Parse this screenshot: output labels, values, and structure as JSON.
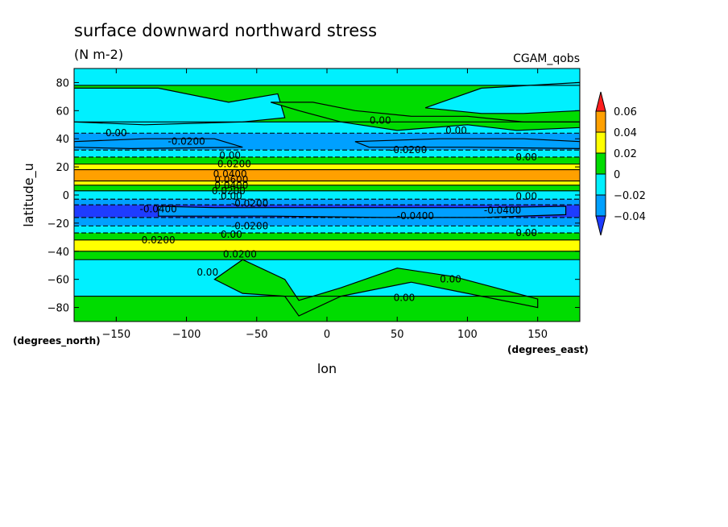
{
  "chart_data": {
    "type": "heatmap",
    "title": "surface downward northward stress",
    "units": "(N m-2)",
    "dataset": "CGAM_qobs",
    "xlabel": "lon",
    "ylabel": "latitude_u",
    "x_units": "(degrees_east)",
    "y_units": "(degrees_north)",
    "xlim": [
      -180,
      180
    ],
    "ylim": [
      -90,
      90
    ],
    "x_ticks": [
      -150,
      -100,
      -50,
      0,
      50,
      100,
      150
    ],
    "y_ticks": [
      80,
      60,
      40,
      20,
      0,
      -20,
      -40,
      -60,
      -80
    ],
    "colorbar": {
      "levels": [
        0.06,
        0.04,
        0.02,
        0,
        -0.02,
        -0.04
      ],
      "level_labels": [
        "0.06",
        "0.04",
        "0.02",
        "0",
        "−0.02",
        "−0.04"
      ],
      "bins": [
        {
          "name": "above 0.06",
          "color": "#ff1e1e"
        },
        {
          "name": "0.04 to 0.06",
          "color": "#ffa000"
        },
        {
          "name": "0.02 to 0.04",
          "color": "#ffff00"
        },
        {
          "name": "0 to 0.02",
          "color": "#00dc00"
        },
        {
          "name": "-0.02 to 0",
          "color": "#00f0ff"
        },
        {
          "name": "-0.04 to -0.02",
          "color": "#00a0ff"
        },
        {
          "name": "below -0.04",
          "color": "#1e3cff"
        }
      ]
    },
    "bands": [
      {
        "lat": [
          78,
          90
        ],
        "bin": "-0.02 to 0"
      },
      {
        "lat": [
          52,
          78
        ],
        "bin": "0 to 0.02"
      },
      {
        "lat": [
          44,
          52
        ],
        "bin": "-0.02 to 0"
      },
      {
        "lat": [
          32,
          44
        ],
        "bin": "-0.04 to -0.02"
      },
      {
        "lat": [
          27,
          32
        ],
        "bin": "-0.02 to 0"
      },
      {
        "lat": [
          22,
          27
        ],
        "bin": "0 to 0.02"
      },
      {
        "lat": [
          18,
          22
        ],
        "bin": "0.02 to 0.04"
      },
      {
        "lat": [
          10,
          18
        ],
        "bin": "0.04 to 0.06"
      },
      {
        "lat": [
          7,
          10
        ],
        "bin": "0.02 to 0.04"
      },
      {
        "lat": [
          3,
          7
        ],
        "bin": "0 to 0.02"
      },
      {
        "lat": [
          -3,
          3
        ],
        "bin": "-0.02 to 0"
      },
      {
        "lat": [
          -7,
          -3
        ],
        "bin": "-0.04 to -0.02"
      },
      {
        "lat": [
          -16,
          -7
        ],
        "bin": "below -0.04"
      },
      {
        "lat": [
          -22,
          -16
        ],
        "bin": "-0.04 to -0.02"
      },
      {
        "lat": [
          -27,
          -22
        ],
        "bin": "-0.02 to 0"
      },
      {
        "lat": [
          -32,
          -27
        ],
        "bin": "0 to 0.02"
      },
      {
        "lat": [
          -40,
          -32
        ],
        "bin": "0.02 to 0.04"
      },
      {
        "lat": [
          -46,
          -40
        ],
        "bin": "0 to 0.02"
      },
      {
        "lat": [
          -72,
          -46
        ],
        "bin": "-0.02 to 0"
      },
      {
        "lat": [
          -90,
          -72
        ],
        "bin": "0 to 0.02"
      }
    ],
    "patches": [
      {
        "bin": "-0.02 to 0",
        "points": [
          [
            -180,
            76
          ],
          [
            -120,
            76
          ],
          [
            -70,
            66
          ],
          [
            -35,
            72
          ],
          [
            -30,
            55
          ],
          [
            -60,
            52
          ],
          [
            -130,
            50
          ],
          [
            -180,
            52
          ]
        ]
      },
      {
        "bin": "0 to 0.02",
        "points": [
          [
            -40,
            66
          ],
          [
            -20,
            60
          ],
          [
            10,
            52
          ],
          [
            50,
            46
          ],
          [
            100,
            50
          ],
          [
            135,
            46
          ],
          [
            180,
            48
          ],
          [
            180,
            52
          ],
          [
            140,
            52
          ],
          [
            100,
            56
          ],
          [
            60,
            56
          ],
          [
            20,
            60
          ],
          [
            -10,
            66
          ]
        ]
      },
      {
        "bin": "-0.02 to 0",
        "points": [
          [
            70,
            62
          ],
          [
            110,
            76
          ],
          [
            180,
            80
          ],
          [
            180,
            60
          ],
          [
            140,
            58
          ],
          [
            110,
            58
          ]
        ]
      },
      {
        "bin": "0 to 0.02",
        "points": [
          [
            -60,
            -46
          ],
          [
            -30,
            -60
          ],
          [
            -20,
            -75
          ],
          [
            10,
            -66
          ],
          [
            50,
            -52
          ],
          [
            90,
            -58
          ],
          [
            120,
            -66
          ],
          [
            150,
            -74
          ],
          [
            150,
            -80
          ],
          [
            100,
            -70
          ],
          [
            60,
            -62
          ],
          [
            10,
            -72
          ],
          [
            -20,
            -86
          ],
          [
            -30,
            -72
          ],
          [
            -60,
            -70
          ],
          [
            -80,
            -60
          ]
        ]
      },
      {
        "bin": "-0.04 to -0.02",
        "points": [
          [
            -120,
            -8
          ],
          [
            -80,
            -9
          ],
          [
            -40,
            -9
          ],
          [
            40,
            -9
          ],
          [
            110,
            -9
          ],
          [
            170,
            -8
          ],
          [
            170,
            -14
          ],
          [
            110,
            -16
          ],
          [
            40,
            -16
          ],
          [
            -40,
            -15
          ],
          [
            -120,
            -15
          ]
        ]
      },
      {
        "bin": "-0.04 to -0.02",
        "points": [
          [
            -180,
            38
          ],
          [
            -130,
            40
          ],
          [
            -80,
            40
          ],
          [
            -60,
            34
          ],
          [
            -140,
            33
          ],
          [
            -180,
            34
          ]
        ]
      },
      {
        "bin": "-0.04 to -0.02",
        "points": [
          [
            20,
            38
          ],
          [
            80,
            40
          ],
          [
            140,
            40
          ],
          [
            180,
            38
          ],
          [
            180,
            33
          ],
          [
            100,
            34
          ],
          [
            30,
            34
          ]
        ]
      }
    ],
    "contour_labels": [
      {
        "text": "0.00",
        "lon": -150,
        "lat": 44
      },
      {
        "text": "-0.0200",
        "lon": -100,
        "lat": 38
      },
      {
        "text": "0.00",
        "lon": 38,
        "lat": 53
      },
      {
        "text": "0.00",
        "lon": 92,
        "lat": 46
      },
      {
        "text": "-0.0200",
        "lon": 58,
        "lat": 32
      },
      {
        "text": "0.00",
        "lon": 142,
        "lat": 27
      },
      {
        "text": "0.00",
        "lon": -69,
        "lat": 28
      },
      {
        "text": "0.0200",
        "lon": -66,
        "lat": 22
      },
      {
        "text": "0.0400",
        "lon": -69,
        "lat": 15
      },
      {
        "text": "0.0600",
        "lon": -68,
        "lat": 11
      },
      {
        "text": "0.0400",
        "lon": -68,
        "lat": 7
      },
      {
        "text": "0.0200",
        "lon": -70,
        "lat": 3
      },
      {
        "text": "0.00",
        "lon": -68,
        "lat": -1
      },
      {
        "text": "-0.0200",
        "lon": -55,
        "lat": -6
      },
      {
        "text": "-0.0400",
        "lon": -120,
        "lat": -10
      },
      {
        "text": "-0.0400",
        "lon": 63,
        "lat": -15
      },
      {
        "text": "-0.0400",
        "lon": 125,
        "lat": -11
      },
      {
        "text": "0.00",
        "lon": 142,
        "lat": -1
      },
      {
        "text": "-0.0200",
        "lon": -55,
        "lat": -22
      },
      {
        "text": "0.00",
        "lon": -68,
        "lat": -28
      },
      {
        "text": "0.00",
        "lon": 142,
        "lat": -27
      },
      {
        "text": "0.0200",
        "lon": -120,
        "lat": -32
      },
      {
        "text": "0.0200",
        "lon": -62,
        "lat": -42
      },
      {
        "text": "0.00",
        "lon": -85,
        "lat": -55
      },
      {
        "text": "0.00",
        "lon": 88,
        "lat": -60
      },
      {
        "text": "0.00",
        "lon": 55,
        "lat": -73
      }
    ]
  }
}
